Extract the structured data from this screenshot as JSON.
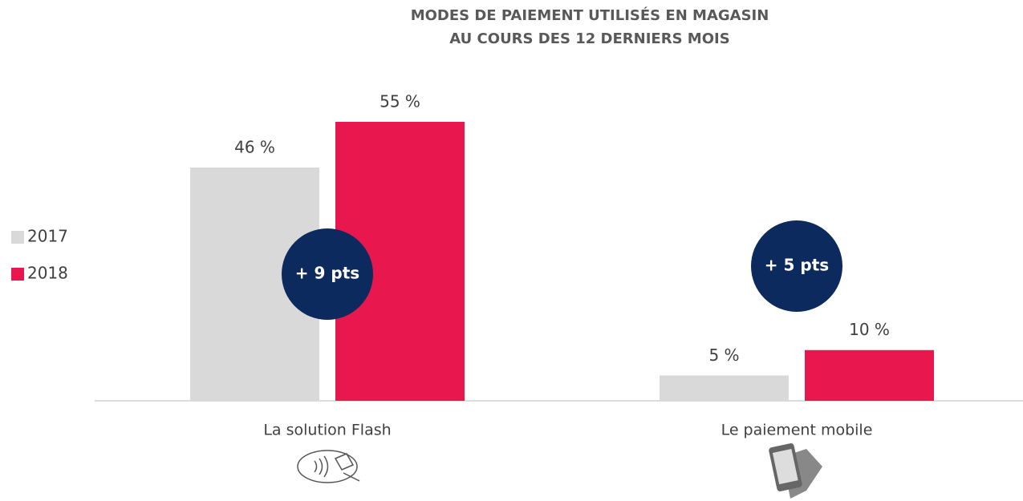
{
  "chart_data": {
    "type": "bar",
    "title": [
      "MODES DE PAIEMENT UTILISÉS EN MAGASIN",
      "AU COURS DES 12 DERNIERS MOIS"
    ],
    "categories": [
      "La solution Flash",
      "Le paiement mobile"
    ],
    "series": [
      {
        "name": "2017",
        "color": "#d9d9d9",
        "values": [
          46,
          5
        ],
        "value_labels": [
          "46 %",
          "5 %"
        ]
      },
      {
        "name": "2018",
        "color": "#e8174d",
        "values": [
          55,
          10
        ],
        "value_labels": [
          "55 %",
          "10 %"
        ]
      }
    ],
    "annotations": [
      "+ 9 pts",
      "+ 5 pts"
    ],
    "legend": "left"
  }
}
